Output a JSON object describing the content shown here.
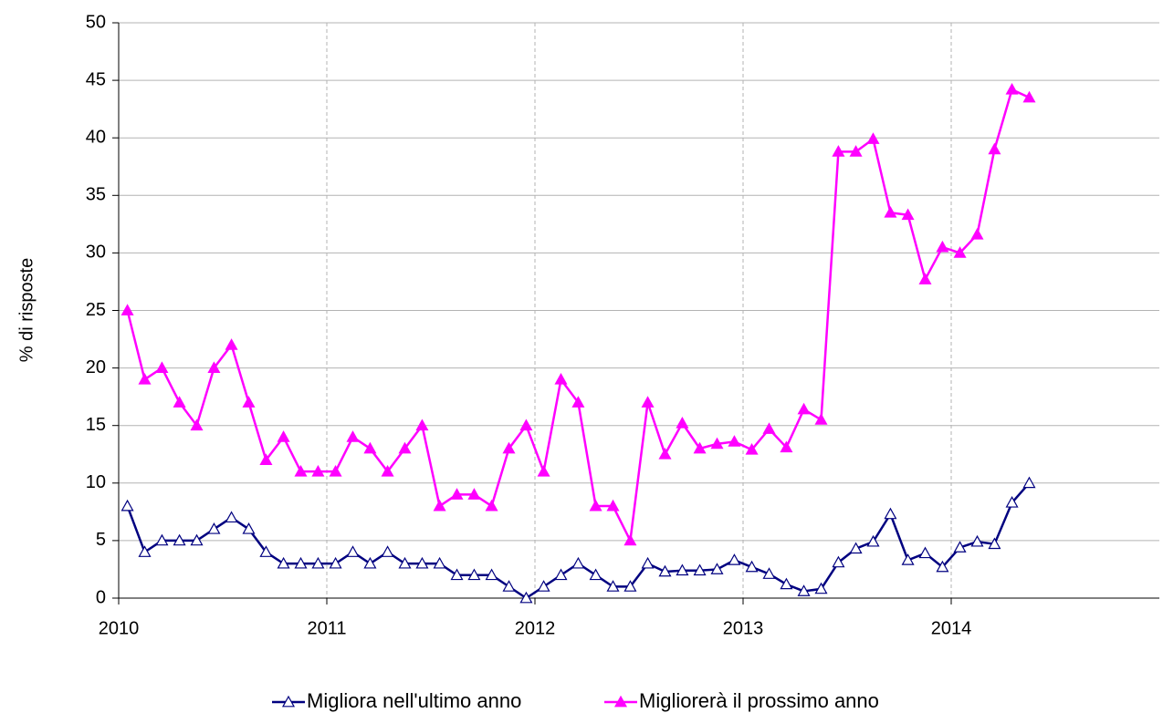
{
  "chart_data": {
    "type": "line",
    "ylabel": "% di risposte",
    "x": [
      2010.042,
      2010.125,
      2010.208,
      2010.292,
      2010.375,
      2010.458,
      2010.542,
      2010.625,
      2010.708,
      2010.792,
      2010.875,
      2010.958,
      2011.042,
      2011.125,
      2011.208,
      2011.292,
      2011.375,
      2011.458,
      2011.542,
      2011.625,
      2011.708,
      2011.792,
      2011.875,
      2011.958,
      2012.042,
      2012.125,
      2012.208,
      2012.292,
      2012.375,
      2012.458,
      2012.542,
      2012.625,
      2012.708,
      2012.792,
      2012.875,
      2012.958,
      2013.042,
      2013.125,
      2013.208,
      2013.292,
      2013.375,
      2013.458,
      2013.542,
      2013.625,
      2013.708,
      2013.792,
      2013.875,
      2013.958,
      2014.042,
      2014.125,
      2014.208,
      2014.292,
      2014.375
    ],
    "series": [
      {
        "name": "Migliora nell'ultimo anno",
        "color": "#000080",
        "marker_fill": "#ffffff",
        "values": [
          8,
          4,
          5,
          5,
          5,
          6,
          7,
          6,
          4,
          3,
          3,
          3,
          3,
          4,
          3,
          4,
          3,
          3,
          3,
          2,
          2,
          2,
          1,
          0,
          1,
          2,
          3,
          2,
          1,
          1,
          3,
          2.3,
          2.4,
          2.4,
          2.5,
          3.3,
          2.7,
          2.1,
          1.2,
          0.6,
          0.8,
          3.1,
          4.3,
          4.9,
          7.3,
          3.3,
          3.9,
          2.7,
          4.4,
          4.9,
          4.7,
          8.3,
          10
        ]
      },
      {
        "name": "Migliorerà il prossimo anno",
        "color": "#ff00ff",
        "marker_fill": "#ff00ff",
        "values": [
          25,
          19,
          20,
          17,
          15,
          20,
          22,
          17,
          12,
          14,
          11,
          11,
          11,
          14,
          13,
          11,
          13,
          15,
          8,
          9,
          9,
          8,
          13,
          15,
          11,
          19,
          17,
          8,
          8,
          5,
          17,
          12.5,
          15.2,
          13,
          13.4,
          13.6,
          12.9,
          14.7,
          13.1,
          16.4,
          15.5,
          38.8,
          38.8,
          39.9,
          33.5,
          33.3,
          27.7,
          30.5,
          30,
          31.6,
          39,
          44.2,
          43.5
        ]
      }
    ],
    "xlim": [
      2010,
      2015
    ],
    "xticks": [
      2010,
      2011,
      2012,
      2013,
      2014
    ],
    "ylim": [
      0,
      50
    ],
    "yticks": [
      0,
      5,
      10,
      15,
      20,
      25,
      30,
      35,
      40,
      45,
      50
    ],
    "grid": true
  }
}
